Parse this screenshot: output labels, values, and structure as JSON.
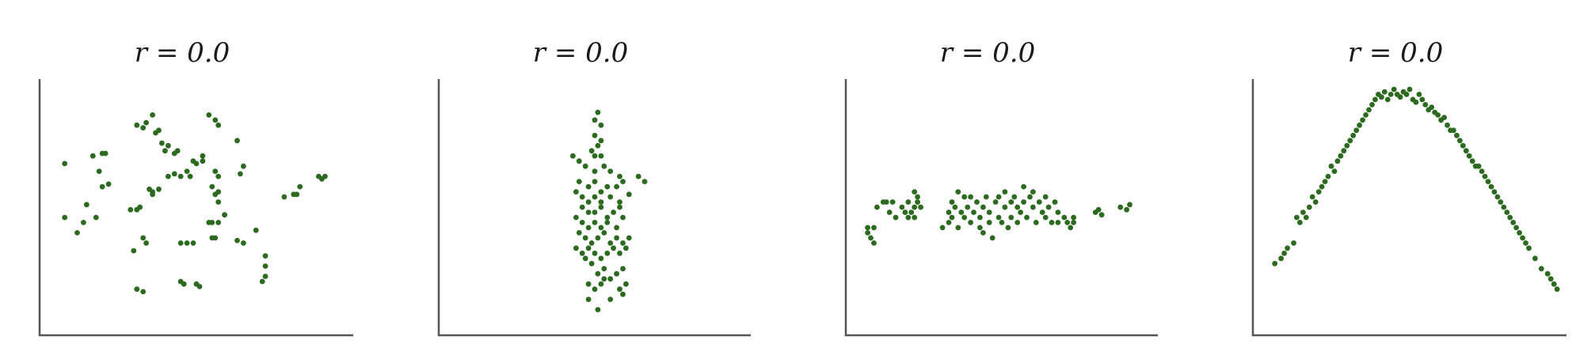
{
  "colors": {
    "marker": "#2b6a1f",
    "axis": "#555555",
    "text": "#1a1a1a"
  },
  "chart_data": [
    {
      "type": "scatter",
      "title": "r = 0.0",
      "xlim": [
        0,
        100
      ],
      "ylim": [
        0,
        100
      ],
      "grid": false,
      "points": [
        [
          8,
          67
        ],
        [
          17,
          70
        ],
        [
          20,
          71
        ],
        [
          21,
          71
        ],
        [
          19,
          64
        ],
        [
          20,
          58
        ],
        [
          8,
          46
        ],
        [
          15,
          51
        ],
        [
          14,
          44
        ],
        [
          18,
          46
        ],
        [
          12,
          40
        ],
        [
          22,
          59
        ],
        [
          30,
          33
        ],
        [
          31,
          18
        ],
        [
          33,
          17
        ],
        [
          34,
          36
        ],
        [
          33,
          38
        ],
        [
          29,
          49
        ],
        [
          31,
          49
        ],
        [
          32,
          50
        ],
        [
          31,
          82
        ],
        [
          33,
          81
        ],
        [
          34,
          83
        ],
        [
          36,
          86
        ],
        [
          37,
          79
        ],
        [
          38,
          80
        ],
        [
          39,
          75
        ],
        [
          40,
          72
        ],
        [
          41,
          74
        ],
        [
          43,
          71
        ],
        [
          44,
          72
        ],
        [
          41,
          62
        ],
        [
          43,
          63
        ],
        [
          45,
          62
        ],
        [
          47,
          64
        ],
        [
          48,
          62
        ],
        [
          49,
          68
        ],
        [
          50,
          67
        ],
        [
          52,
          70
        ],
        [
          52,
          68
        ],
        [
          36,
          55
        ],
        [
          36,
          56
        ],
        [
          38,
          57
        ],
        [
          35,
          57
        ],
        [
          47,
          36
        ],
        [
          45,
          36
        ],
        [
          49,
          36
        ],
        [
          45,
          21
        ],
        [
          46,
          20
        ],
        [
          50,
          20
        ],
        [
          51,
          19
        ],
        [
          54,
          86
        ],
        [
          56,
          84
        ],
        [
          57,
          82
        ],
        [
          57,
          62
        ],
        [
          56,
          64
        ],
        [
          55,
          58
        ],
        [
          57,
          52
        ],
        [
          56,
          55
        ],
        [
          57,
          56
        ],
        [
          55,
          44
        ],
        [
          57,
          44
        ],
        [
          55,
          38
        ],
        [
          56,
          38
        ],
        [
          54,
          44
        ],
        [
          59,
          47
        ],
        [
          63,
          37
        ],
        [
          65,
          36
        ],
        [
          69,
          41
        ],
        [
          72,
          31
        ],
        [
          63,
          76
        ],
        [
          64,
          63
        ],
        [
          65,
          66
        ],
        [
          71,
          21
        ],
        [
          72,
          23
        ],
        [
          72,
          27
        ],
        [
          78,
          54
        ],
        [
          81,
          55
        ],
        [
          82,
          55
        ],
        [
          83,
          58
        ],
        [
          89,
          62
        ],
        [
          90,
          61
        ],
        [
          91,
          62
        ]
      ]
    },
    {
      "type": "scatter",
      "title": "r = 0.0",
      "xlim": [
        0,
        100
      ],
      "ylim": [
        0,
        100
      ],
      "grid": false,
      "points": [
        [
          51,
          87
        ],
        [
          50,
          84
        ],
        [
          52,
          82
        ],
        [
          50,
          78
        ],
        [
          52,
          76
        ],
        [
          51,
          74
        ],
        [
          49,
          72
        ],
        [
          50,
          70
        ],
        [
          52,
          70
        ],
        [
          43,
          70
        ],
        [
          45,
          68
        ],
        [
          47,
          66
        ],
        [
          50,
          64
        ],
        [
          53,
          66
        ],
        [
          55,
          64
        ],
        [
          58,
          62
        ],
        [
          45,
          60
        ],
        [
          48,
          58
        ],
        [
          50,
          60
        ],
        [
          52,
          56
        ],
        [
          54,
          58
        ],
        [
          57,
          58
        ],
        [
          59,
          60
        ],
        [
          64,
          62
        ],
        [
          66,
          60
        ],
        [
          44,
          56
        ],
        [
          46,
          54
        ],
        [
          48,
          52
        ],
        [
          50,
          54
        ],
        [
          52,
          52
        ],
        [
          55,
          54
        ],
        [
          58,
          52
        ],
        [
          61,
          55
        ],
        [
          46,
          50
        ],
        [
          48,
          48
        ],
        [
          50,
          48
        ],
        [
          52,
          50
        ],
        [
          54,
          46
        ],
        [
          56,
          48
        ],
        [
          58,
          50
        ],
        [
          44,
          46
        ],
        [
          46,
          44
        ],
        [
          48,
          42
        ],
        [
          50,
          44
        ],
        [
          52,
          42
        ],
        [
          54,
          44
        ],
        [
          57,
          42
        ],
        [
          59,
          46
        ],
        [
          45,
          40
        ],
        [
          47,
          38
        ],
        [
          49,
          36
        ],
        [
          51,
          38
        ],
        [
          53,
          40
        ],
        [
          55,
          36
        ],
        [
          57,
          38
        ],
        [
          59,
          36
        ],
        [
          61,
          38
        ],
        [
          44,
          34
        ],
        [
          46,
          32
        ],
        [
          48,
          34
        ],
        [
          50,
          32
        ],
        [
          52,
          30
        ],
        [
          54,
          32
        ],
        [
          56,
          34
        ],
        [
          58,
          32
        ],
        [
          60,
          34
        ],
        [
          47,
          30
        ],
        [
          49,
          28
        ],
        [
          51,
          24
        ],
        [
          53,
          26
        ],
        [
          55,
          22
        ],
        [
          57,
          24
        ],
        [
          59,
          26
        ],
        [
          48,
          20
        ],
        [
          50,
          18
        ],
        [
          52,
          20
        ],
        [
          53,
          22
        ],
        [
          58,
          18
        ],
        [
          60,
          20
        ],
        [
          48,
          14
        ],
        [
          55,
          14
        ],
        [
          51,
          10
        ],
        [
          59,
          16
        ]
      ]
    },
    {
      "type": "scatter",
      "title": "r = 0.0",
      "xlim": [
        0,
        100
      ],
      "ylim": [
        0,
        100
      ],
      "grid": false,
      "points": [
        [
          7,
          40
        ],
        [
          8,
          38
        ],
        [
          9,
          36
        ],
        [
          9,
          42
        ],
        [
          7,
          42
        ],
        [
          10,
          50
        ],
        [
          12,
          52
        ],
        [
          13,
          52
        ],
        [
          14,
          48
        ],
        [
          16,
          46
        ],
        [
          15,
          52
        ],
        [
          18,
          50
        ],
        [
          19,
          48
        ],
        [
          20,
          46
        ],
        [
          20,
          52
        ],
        [
          21,
          48
        ],
        [
          22,
          50
        ],
        [
          22,
          46
        ],
        [
          23,
          52
        ],
        [
          23,
          54
        ],
        [
          22,
          56
        ],
        [
          24,
          50
        ],
        [
          31,
          42
        ],
        [
          33,
          44
        ],
        [
          33,
          48
        ],
        [
          34,
          46
        ],
        [
          34,
          52
        ],
        [
          35,
          50
        ],
        [
          36,
          42
        ],
        [
          36,
          56
        ],
        [
          37,
          48
        ],
        [
          38,
          54
        ],
        [
          38,
          46
        ],
        [
          39,
          50
        ],
        [
          40,
          44
        ],
        [
          40,
          54
        ],
        [
          41,
          48
        ],
        [
          42,
          52
        ],
        [
          43,
          46
        ],
        [
          43,
          42
        ],
        [
          44,
          50
        ],
        [
          45,
          54
        ],
        [
          44,
          40
        ],
        [
          46,
          44
        ],
        [
          47,
          38
        ],
        [
          46,
          48
        ],
        [
          48,
          52
        ],
        [
          49,
          54
        ],
        [
          49,
          46
        ],
        [
          50,
          44
        ],
        [
          51,
          50
        ],
        [
          51,
          56
        ],
        [
          52,
          42
        ],
        [
          53,
          52
        ],
        [
          53,
          46
        ],
        [
          54,
          54
        ],
        [
          55,
          50
        ],
        [
          55,
          44
        ],
        [
          56,
          48
        ],
        [
          57,
          52
        ],
        [
          57,
          58
        ],
        [
          58,
          46
        ],
        [
          59,
          54
        ],
        [
          60,
          50
        ],
        [
          60,
          56
        ],
        [
          61,
          44
        ],
        [
          62,
          52
        ],
        [
          63,
          48
        ],
        [
          64,
          46
        ],
        [
          64,
          54
        ],
        [
          65,
          50
        ],
        [
          66,
          44
        ],
        [
          67,
          52
        ],
        [
          68,
          48
        ],
        [
          68,
          44
        ],
        [
          70,
          46
        ],
        [
          71,
          44
        ],
        [
          72,
          42
        ],
        [
          73,
          44
        ],
        [
          73,
          46
        ],
        [
          80,
          48
        ],
        [
          81,
          49
        ],
        [
          82,
          47
        ],
        [
          88,
          50
        ],
        [
          90,
          49
        ],
        [
          91,
          51
        ]
      ]
    },
    {
      "type": "scatter",
      "title": "r = 0.0",
      "xlim": [
        0,
        100
      ],
      "ylim": [
        0,
        100
      ],
      "grid": false,
      "points": [
        [
          7,
          28
        ],
        [
          9,
          30
        ],
        [
          10,
          32
        ],
        [
          11,
          34
        ],
        [
          13,
          36
        ],
        [
          14,
          46
        ],
        [
          15,
          44
        ],
        [
          16,
          48
        ],
        [
          17,
          46
        ],
        [
          18,
          50
        ],
        [
          19,
          54
        ],
        [
          20,
          52
        ],
        [
          21,
          56
        ],
        [
          22,
          58
        ],
        [
          23,
          60
        ],
        [
          24,
          62
        ],
        [
          25,
          66
        ],
        [
          26,
          64
        ],
        [
          27,
          68
        ],
        [
          28,
          70
        ],
        [
          29,
          72
        ],
        [
          30,
          74
        ],
        [
          31,
          76
        ],
        [
          32,
          78
        ],
        [
          33,
          80
        ],
        [
          34,
          82
        ],
        [
          35,
          84
        ],
        [
          36,
          86
        ],
        [
          37,
          88
        ],
        [
          38,
          90
        ],
        [
          39,
          92
        ],
        [
          40,
          94
        ],
        [
          41,
          93
        ],
        [
          42,
          95
        ],
        [
          43,
          92
        ],
        [
          44,
          94
        ],
        [
          45,
          96
        ],
        [
          46,
          94
        ],
        [
          47,
          93
        ],
        [
          48,
          95
        ],
        [
          49,
          94
        ],
        [
          50,
          96
        ],
        [
          51,
          92
        ],
        [
          52,
          91
        ],
        [
          53,
          94
        ],
        [
          54,
          92
        ],
        [
          55,
          90
        ],
        [
          56,
          88
        ],
        [
          57,
          89
        ],
        [
          58,
          87
        ],
        [
          59,
          86
        ],
        [
          60,
          84
        ],
        [
          61,
          85
        ],
        [
          62,
          82
        ],
        [
          63,
          80
        ],
        [
          64,
          80
        ],
        [
          65,
          78
        ],
        [
          66,
          76
        ],
        [
          67,
          74
        ],
        [
          68,
          72
        ],
        [
          69,
          70
        ],
        [
          70,
          68
        ],
        [
          71,
          66
        ],
        [
          72,
          66
        ],
        [
          73,
          64
        ],
        [
          74,
          62
        ],
        [
          75,
          60
        ],
        [
          76,
          58
        ],
        [
          77,
          56
        ],
        [
          78,
          54
        ],
        [
          79,
          52
        ],
        [
          80,
          50
        ],
        [
          81,
          48
        ],
        [
          82,
          46
        ],
        [
          83,
          44
        ],
        [
          84,
          42
        ],
        [
          85,
          40
        ],
        [
          86,
          38
        ],
        [
          87,
          36
        ],
        [
          88,
          34
        ],
        [
          90,
          30
        ],
        [
          92,
          26
        ],
        [
          94,
          24
        ],
        [
          95,
          22
        ],
        [
          96,
          20
        ],
        [
          97,
          18
        ]
      ]
    }
  ]
}
